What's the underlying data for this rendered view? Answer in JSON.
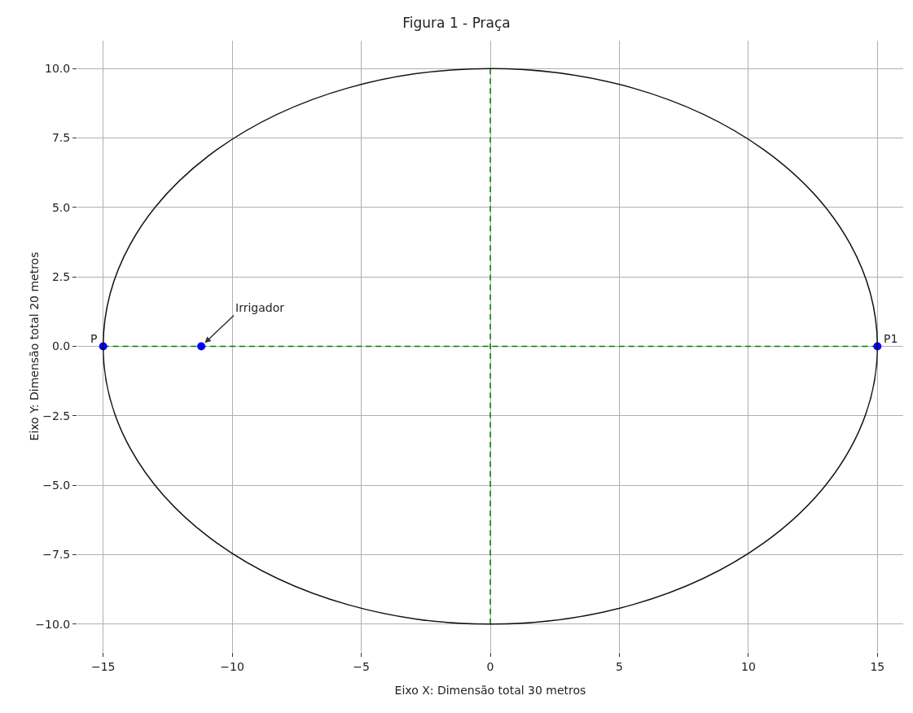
{
  "chart_data": {
    "type": "line",
    "title": "Figura 1 - Praça",
    "xlabel": "Eixo X: Dimensão total 30 metros",
    "ylabel": "Eixo Y: Dimensão total 20 metros",
    "xlim": [
      -16,
      16
    ],
    "ylim": [
      -11,
      11
    ],
    "xticks": [
      {
        "value": -15,
        "label": "−15"
      },
      {
        "value": -10,
        "label": "−10"
      },
      {
        "value": -5,
        "label": "−5"
      },
      0,
      5,
      10,
      15
    ],
    "yticks": [
      {
        "value": -10,
        "label": "−10.0"
      },
      {
        "value": -7.5,
        "label": "−7.5"
      },
      {
        "value": -5,
        "label": "−5.0"
      },
      {
        "value": -2.5,
        "label": "−2.5"
      },
      {
        "value": 0,
        "label": "0.0"
      },
      {
        "value": 2.5,
        "label": "2.5"
      },
      {
        "value": 5,
        "label": "5.0"
      },
      {
        "value": 7.5,
        "label": "7.5"
      },
      {
        "value": 10,
        "label": "10.0"
      }
    ],
    "grid": true,
    "series": [
      {
        "color": "#008000",
        "line_style": "dashed",
        "marker": "none",
        "x": [
          -15,
          15
        ],
        "values": [
          0,
          0
        ]
      },
      {
        "color": "#008000",
        "line_style": "dashed",
        "marker": "none",
        "x": [
          0,
          0
        ],
        "values": [
          -10,
          10
        ]
      },
      {
        "type": "scatter",
        "color": "#0000ff",
        "marker": "circle",
        "x": [
          -15,
          -11.2,
          15
        ],
        "values": [
          0,
          0,
          0
        ]
      }
    ],
    "annotations": [
      {
        "text": "P",
        "x": -15,
        "y": 0
      },
      {
        "text": "Irrigador",
        "x": -11.2,
        "y": 0
      },
      {
        "text": "P1",
        "x": 15,
        "y": 0
      }
    ]
  }
}
